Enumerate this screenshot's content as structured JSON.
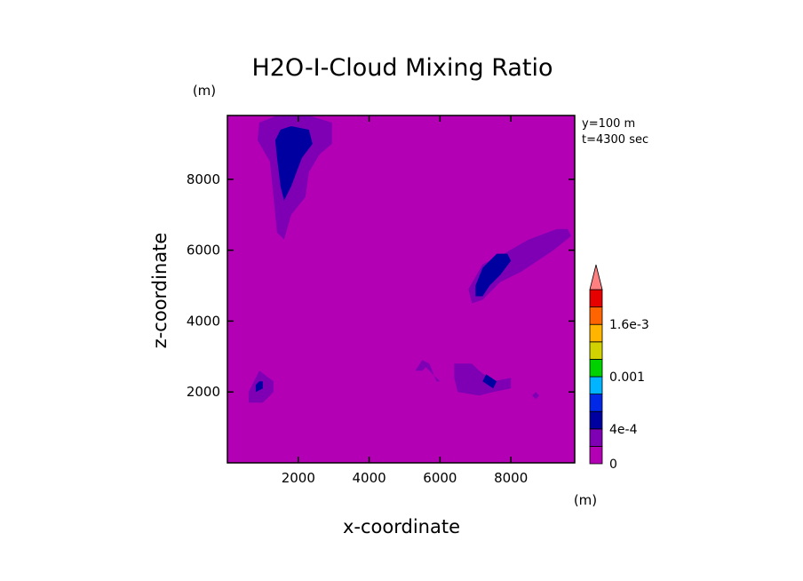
{
  "chart_data": {
    "type": "contour",
    "title": "H2O-I-Cloud Mixing Ratio",
    "xlabel": "x-coordinate",
    "ylabel": "z-coordinate",
    "x_unit": "(m)",
    "y_unit": "(m)",
    "info": [
      "y=100 m",
      "t=4300 sec"
    ],
    "xlim": [
      0,
      9800
    ],
    "ylim": [
      0,
      9800
    ],
    "xticks": [
      2000,
      4000,
      6000,
      8000
    ],
    "yticks": [
      2000,
      4000,
      6000,
      8000
    ],
    "xtick_labels": [
      "2000",
      "4000",
      "6000",
      "8000"
    ],
    "ytick_labels": [
      "2000",
      "4000",
      "6000",
      "8000"
    ],
    "background_color": "#b400b4",
    "colorbar": {
      "colors": [
        "#b400b4",
        "#7f00b4",
        "#0000a0",
        "#0028e6",
        "#00b4ff",
        "#00d200",
        "#d2d200",
        "#ffb400",
        "#ff6400",
        "#e60000"
      ],
      "extend_color": "#ff8080",
      "labels": [
        {
          "text": "0",
          "level": 0
        },
        {
          "text": "4e-4",
          "level": 2
        },
        {
          "text": "0.001",
          "level": 5
        },
        {
          "text": "1.6e-3",
          "level": 8
        }
      ]
    },
    "regions": [
      {
        "level": 1,
        "points": [
          [
            900,
            9600
          ],
          [
            1400,
            9800
          ],
          [
            2300,
            9800
          ],
          [
            2950,
            9600
          ],
          [
            2950,
            9000
          ],
          [
            2600,
            8700
          ],
          [
            2300,
            8200
          ],
          [
            2200,
            7500
          ],
          [
            1800,
            7000
          ],
          [
            1600,
            6300
          ],
          [
            1400,
            6500
          ],
          [
            1300,
            7500
          ],
          [
            1200,
            8500
          ],
          [
            850,
            9100
          ]
        ]
      },
      {
        "level": 2,
        "points": [
          [
            1500,
            9400
          ],
          [
            1800,
            9500
          ],
          [
            2300,
            9400
          ],
          [
            2400,
            9000
          ],
          [
            2100,
            8600
          ],
          [
            1800,
            7800
          ],
          [
            1600,
            7400
          ],
          [
            1500,
            7800
          ],
          [
            1400,
            8600
          ],
          [
            1350,
            9100
          ]
        ]
      },
      {
        "level": 1,
        "points": [
          [
            6800,
            4900
          ],
          [
            7200,
            5600
          ],
          [
            7800,
            5900
          ],
          [
            8500,
            6300
          ],
          [
            9300,
            6600
          ],
          [
            9600,
            6600
          ],
          [
            9700,
            6400
          ],
          [
            9200,
            6000
          ],
          [
            8300,
            5400
          ],
          [
            7700,
            5100
          ],
          [
            7200,
            4600
          ],
          [
            6900,
            4500
          ]
        ]
      },
      {
        "level": 2,
        "points": [
          [
            7000,
            5000
          ],
          [
            7200,
            5500
          ],
          [
            7600,
            5900
          ],
          [
            7900,
            5900
          ],
          [
            8000,
            5700
          ],
          [
            7700,
            5300
          ],
          [
            7400,
            5000
          ],
          [
            7200,
            4700
          ],
          [
            7000,
            4700
          ]
        ]
      },
      {
        "level": 1,
        "points": [
          [
            600,
            2000
          ],
          [
            600,
            1700
          ],
          [
            1000,
            1700
          ],
          [
            1300,
            2000
          ],
          [
            1300,
            2300
          ],
          [
            900,
            2600
          ],
          [
            800,
            2400
          ]
        ]
      },
      {
        "level": 2,
        "points": [
          [
            800,
            2000
          ],
          [
            1000,
            2100
          ],
          [
            1000,
            2300
          ],
          [
            900,
            2300
          ],
          [
            800,
            2200
          ]
        ]
      },
      {
        "level": 1,
        "points": [
          [
            6400,
            2800
          ],
          [
            6900,
            2800
          ],
          [
            7100,
            2600
          ],
          [
            7500,
            2300
          ],
          [
            8000,
            2400
          ],
          [
            8000,
            2100
          ],
          [
            7500,
            2000
          ],
          [
            7100,
            1900
          ],
          [
            6500,
            2000
          ],
          [
            6400,
            2400
          ]
        ]
      },
      {
        "level": 2,
        "points": [
          [
            7300,
            2500
          ],
          [
            7600,
            2300
          ],
          [
            7500,
            2100
          ],
          [
            7200,
            2300
          ]
        ]
      },
      {
        "level": 1,
        "points": [
          [
            5300,
            2600
          ],
          [
            5500,
            2900
          ],
          [
            5700,
            2800
          ],
          [
            5900,
            2300
          ],
          [
            6000,
            2300
          ],
          [
            5800,
            2500
          ],
          [
            5600,
            2700
          ],
          [
            5500,
            2600
          ]
        ]
      },
      {
        "level": 1,
        "points": [
          [
            8600,
            1900
          ],
          [
            8700,
            1800
          ],
          [
            8800,
            1900
          ],
          [
            8700,
            2000
          ]
        ]
      }
    ]
  }
}
